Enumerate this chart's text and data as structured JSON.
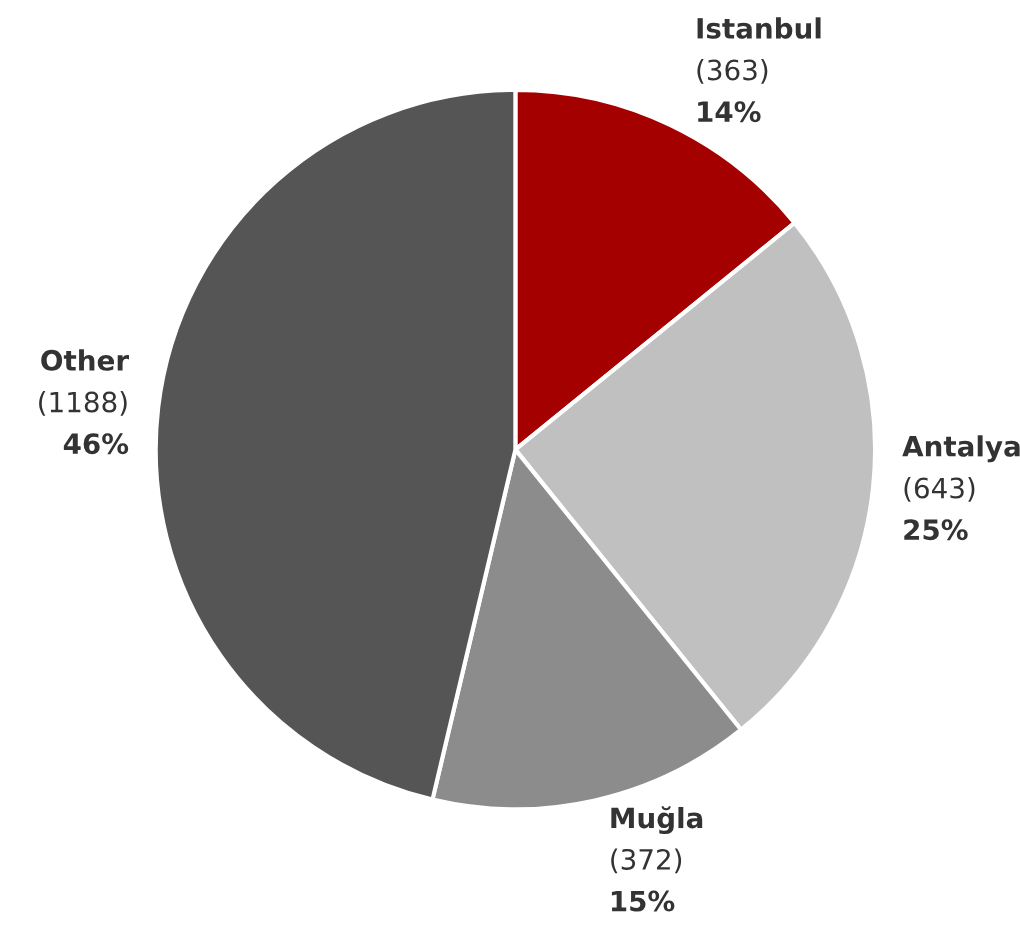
{
  "chart_data": {
    "type": "pie",
    "categories": [
      "Istanbul",
      "Antalya",
      "Muğla",
      "Other"
    ],
    "values": [
      363,
      643,
      372,
      1188
    ],
    "colors": [
      "#a50000",
      "#c0c0c0",
      "#8c8c8c",
      "#555555"
    ],
    "value_labels": [
      "(363)",
      "(643)",
      "(372)",
      "(1188)"
    ],
    "annotations": [
      "14%",
      "25%",
      "15%",
      "46%"
    ]
  }
}
